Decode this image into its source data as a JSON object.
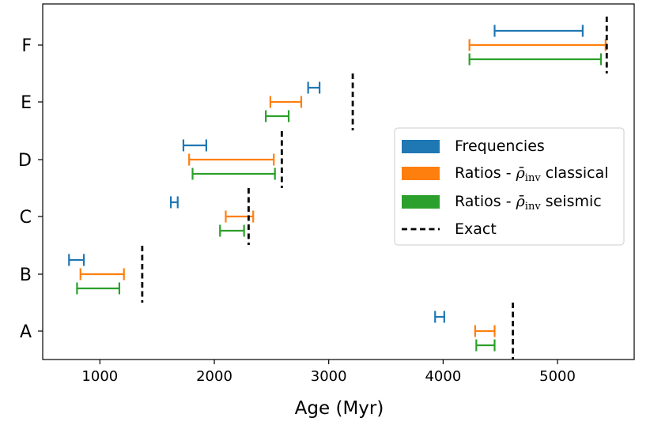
{
  "chart_data": {
    "type": "errorbar-range",
    "title": "",
    "xlabel": "Age (Myr)",
    "ylabel": "",
    "xlim": [
      500,
      5670
    ],
    "xticks": [
      1000,
      2000,
      3000,
      4000,
      5000
    ],
    "xtick_labels": [
      "1000",
      "2000",
      "3000",
      "4000",
      "5000"
    ],
    "categories": [
      "A",
      "B",
      "C",
      "D",
      "E",
      "F"
    ],
    "series": [
      {
        "name": "Frequencies",
        "legend_label": "Frequencies",
        "color": "#1f77b4",
        "ranges": [
          [
            3930,
            4010
          ],
          [
            730,
            860
          ],
          [
            1620,
            1680
          ],
          [
            1730,
            1930
          ],
          [
            2820,
            2920
          ],
          [
            4450,
            5220
          ]
        ]
      },
      {
        "name": "Ratios - ρ̄inv classical",
        "legend_prefix": "Ratios - ",
        "legend_suffix": " classical",
        "color": "#ff7f0e",
        "ranges": [
          [
            4280,
            4450
          ],
          [
            830,
            1210
          ],
          [
            2100,
            2340
          ],
          [
            1780,
            2520
          ],
          [
            2490,
            2760
          ],
          [
            4230,
            5420
          ]
        ]
      },
      {
        "name": "Ratios - ρ̄inv seismic",
        "legend_prefix": "Ratios - ",
        "legend_suffix": " seismic",
        "color": "#2ca02c",
        "ranges": [
          [
            4290,
            4450
          ],
          [
            800,
            1170
          ],
          [
            2050,
            2260
          ],
          [
            1810,
            2530
          ],
          [
            2450,
            2650
          ],
          [
            4230,
            5380
          ]
        ]
      }
    ],
    "exact": {
      "name": "Exact",
      "legend_label": "Exact",
      "color": "#000000",
      "values": [
        4610,
        1370,
        2300,
        2590,
        3210,
        5430
      ]
    },
    "legend": {
      "position": "center-right",
      "rho_symbol": "ρ̄",
      "rho_subscript": "inv"
    }
  }
}
